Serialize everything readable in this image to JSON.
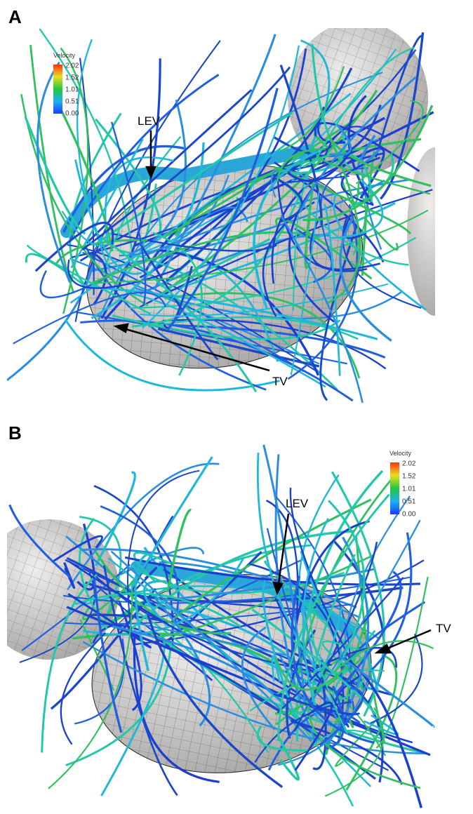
{
  "panels": [
    {
      "label": "A",
      "legend": {
        "title": "Velocity",
        "ticks": [
          "2.02",
          "1.52",
          "1.01",
          "0.51",
          "0.00"
        ]
      },
      "annotations": [
        "LEV",
        "TV"
      ]
    },
    {
      "label": "B",
      "legend": {
        "title": "Velocity",
        "ticks": [
          "2.02",
          "1.52",
          "1.01",
          "0.51",
          "0.00"
        ]
      },
      "annotations": [
        "LEV",
        "TV"
      ]
    }
  ]
}
